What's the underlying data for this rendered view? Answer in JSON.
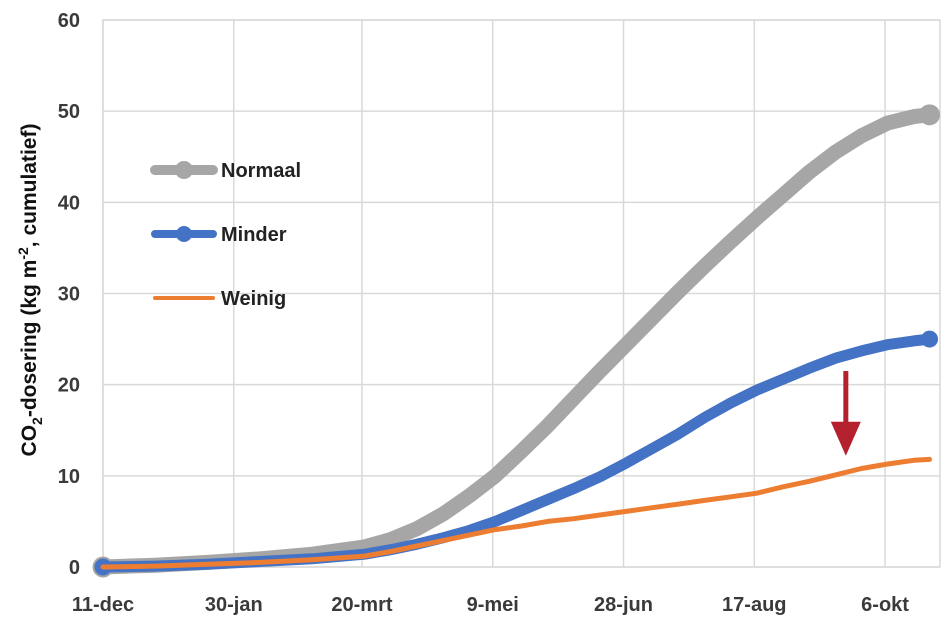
{
  "chart_data": {
    "type": "line",
    "x_tick_labels": [
      "11-dec",
      "30-jan",
      "20-mrt",
      "9-mei",
      "28-jun",
      "17-aug",
      "6-okt"
    ],
    "x_tick_days": [
      0,
      50,
      99,
      149,
      199,
      249,
      299
    ],
    "xlim": [
      0,
      320
    ],
    "ylim": [
      0,
      60
    ],
    "y_ticks": [
      0,
      10,
      20,
      30,
      40,
      50,
      60
    ],
    "ylabel": {
      "pre": "CO",
      "sub": "2",
      "mid": "-dosering (kg m",
      "sup": "-2",
      "post": ", cumulatief)"
    },
    "grid": true,
    "legend_position": "left",
    "series": [
      {
        "name": "Normaal",
        "color": "#a6a6a6",
        "x": [
          0,
          20,
          40,
          60,
          80,
          100,
          110,
          120,
          130,
          140,
          150,
          160,
          170,
          180,
          190,
          200,
          210,
          220,
          230,
          240,
          250,
          260,
          270,
          280,
          290,
          300,
          310,
          316
        ],
        "y": [
          0,
          0.2,
          0.5,
          0.9,
          1.4,
          2.2,
          3.0,
          4.2,
          5.8,
          7.8,
          10.0,
          12.7,
          15.5,
          18.5,
          21.5,
          24.4,
          27.3,
          30.2,
          33.0,
          35.7,
          38.3,
          40.8,
          43.3,
          45.5,
          47.3,
          48.7,
          49.4,
          49.6
        ]
      },
      {
        "name": "Minder",
        "color": "#4472c4",
        "x": [
          0,
          20,
          40,
          60,
          80,
          100,
          110,
          120,
          130,
          140,
          150,
          160,
          170,
          180,
          190,
          200,
          210,
          220,
          230,
          240,
          250,
          260,
          270,
          280,
          290,
          300,
          310,
          316
        ],
        "y": [
          0,
          0.1,
          0.3,
          0.6,
          0.9,
          1.4,
          1.9,
          2.5,
          3.2,
          4.0,
          5.0,
          6.2,
          7.4,
          8.6,
          9.9,
          11.4,
          13.0,
          14.6,
          16.4,
          18.0,
          19.4,
          20.6,
          21.8,
          22.9,
          23.7,
          24.4,
          24.8,
          25.0
        ]
      },
      {
        "name": "Weinig",
        "color": "#ed7d31",
        "x": [
          0,
          20,
          40,
          60,
          80,
          100,
          110,
          120,
          130,
          140,
          150,
          160,
          170,
          180,
          190,
          200,
          210,
          220,
          230,
          240,
          250,
          260,
          270,
          280,
          290,
          300,
          310,
          316
        ],
        "y": [
          0,
          0.1,
          0.3,
          0.5,
          0.8,
          1.2,
          1.7,
          2.3,
          2.9,
          3.5,
          4.1,
          4.5,
          5.0,
          5.3,
          5.7,
          6.1,
          6.5,
          6.9,
          7.3,
          7.7,
          8.1,
          8.8,
          9.4,
          10.1,
          10.8,
          11.3,
          11.7,
          11.8
        ]
      }
    ],
    "annotation": {
      "type": "arrow",
      "color": "#b5202e",
      "x": 284,
      "y_from": 21.5,
      "y_to": 12.2
    }
  }
}
